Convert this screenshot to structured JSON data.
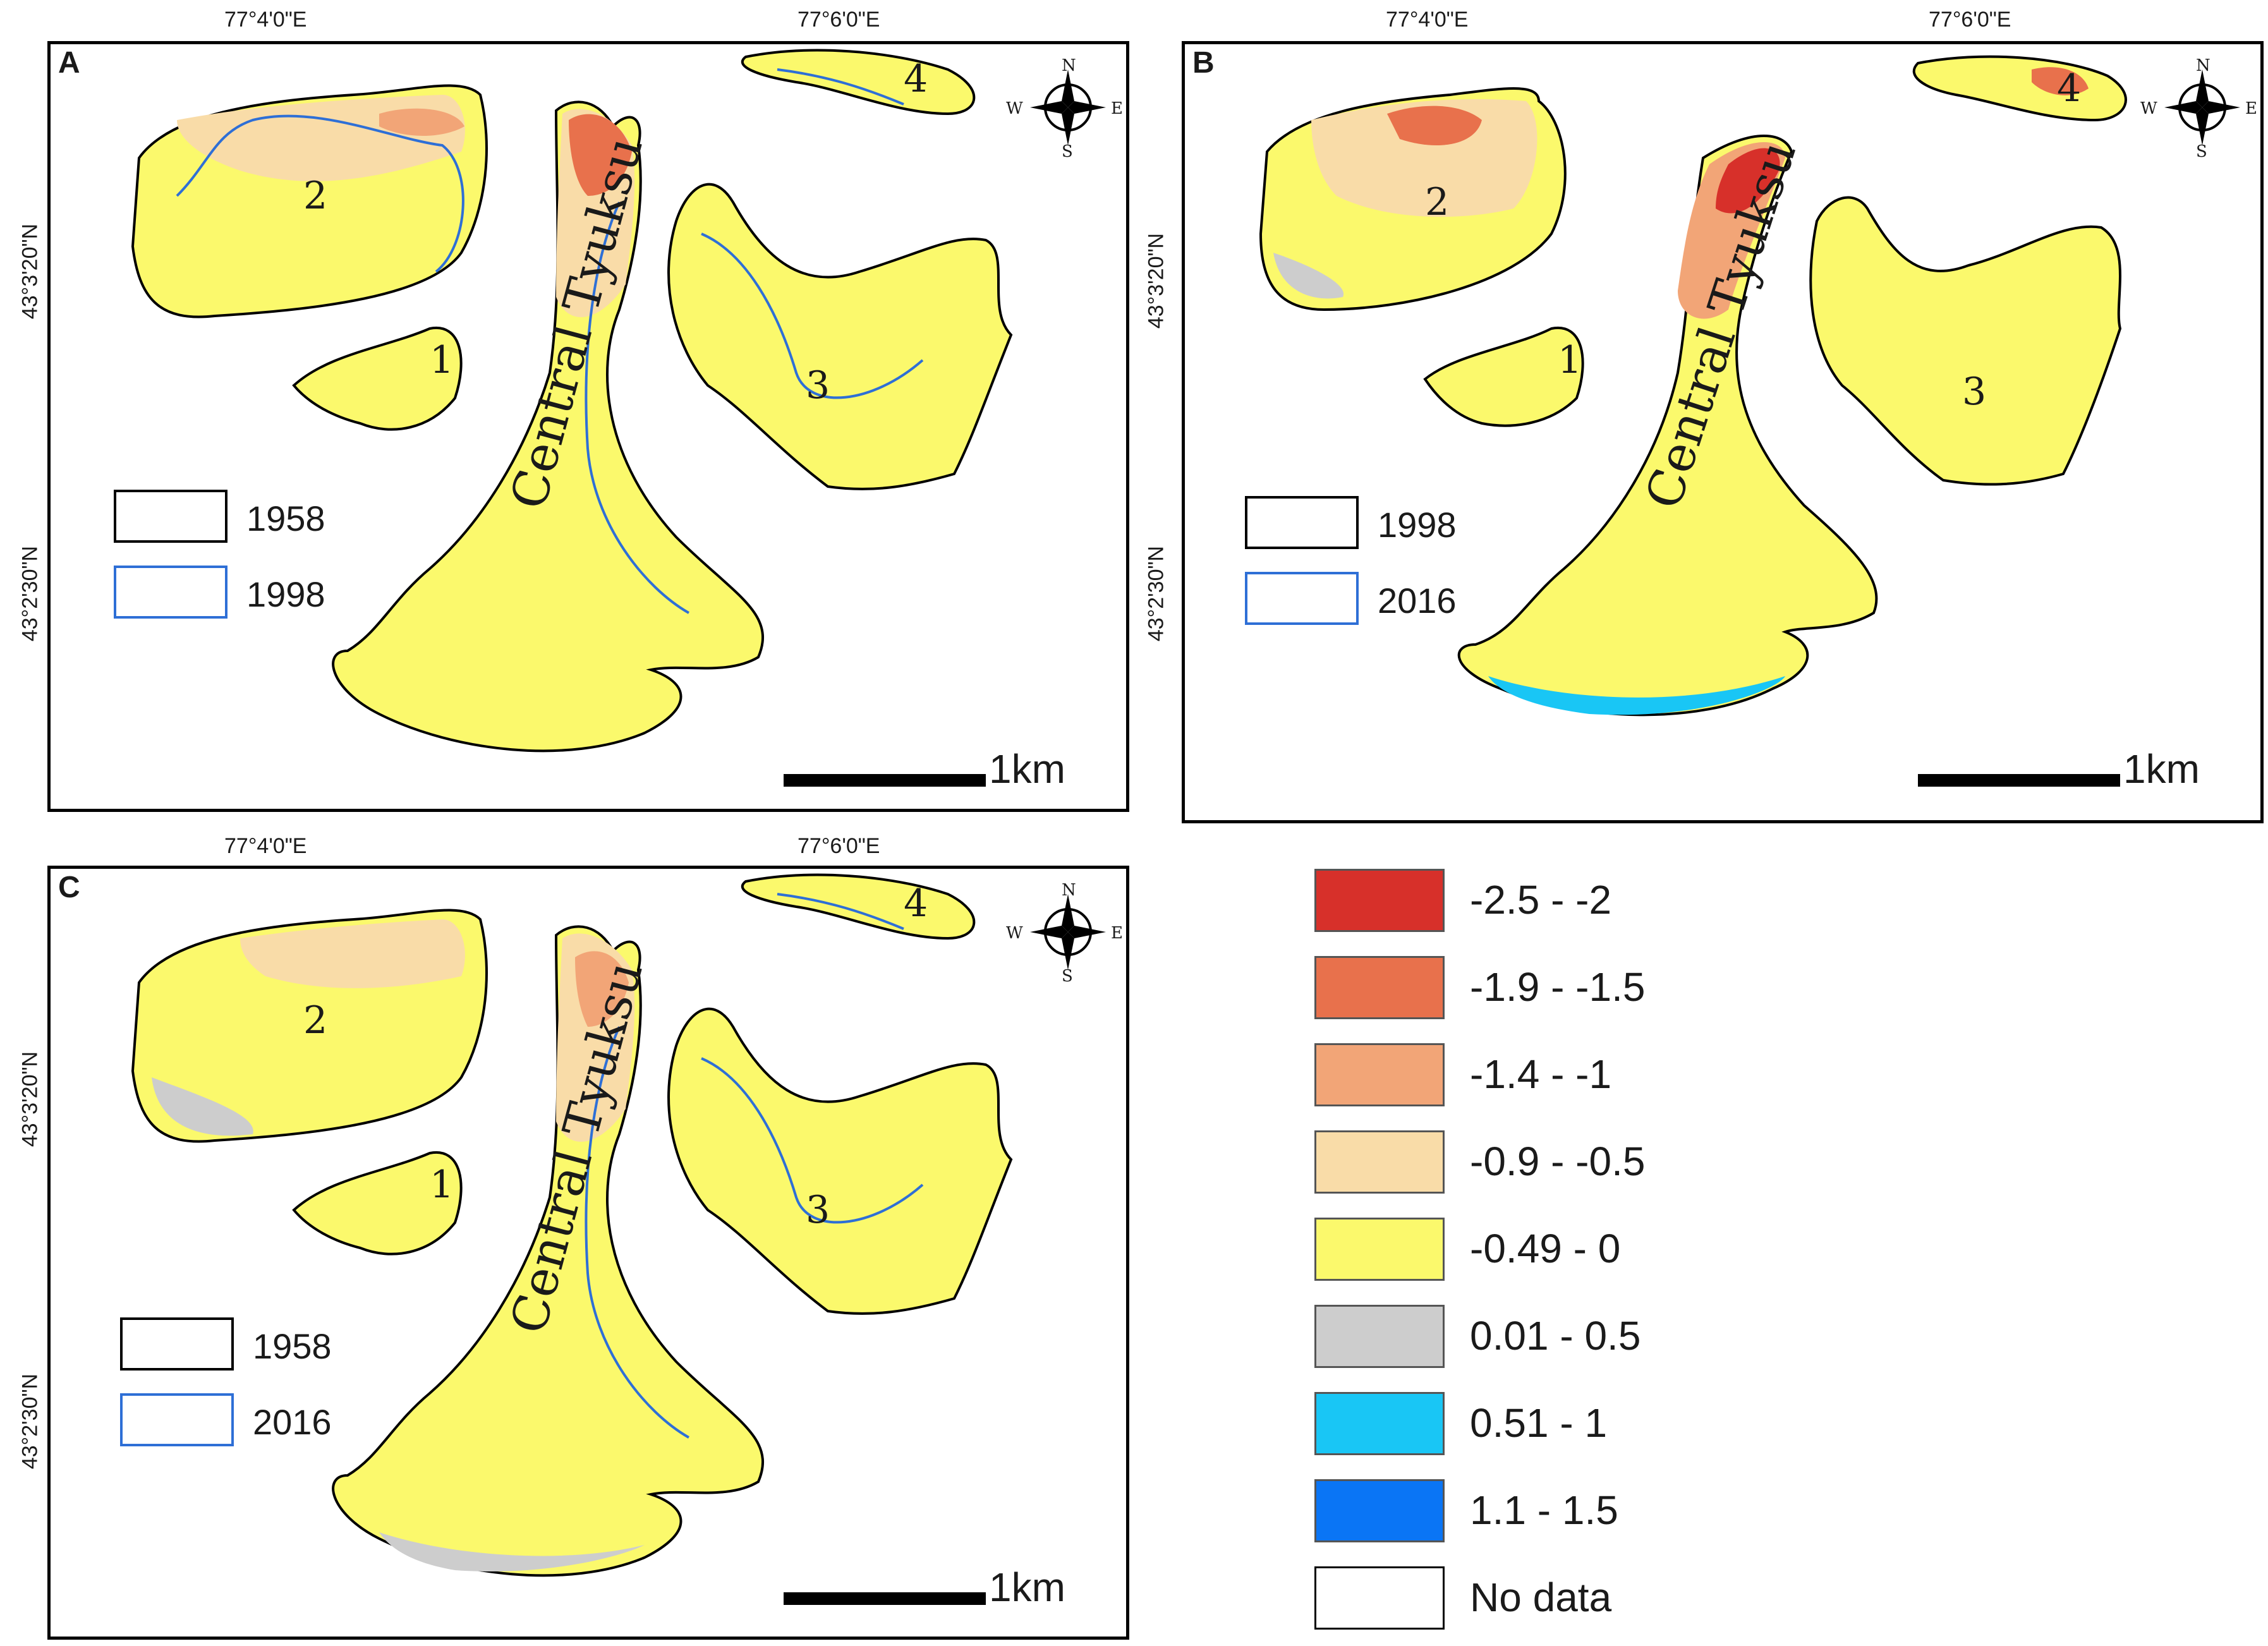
{
  "coords": {
    "lon_west": "77°4'0\"E",
    "lon_east": "77°6'0\"E",
    "lat_north": "43°3'20\"N",
    "lat_south": "43°2'30\"N"
  },
  "compass": {
    "n": "N",
    "s": "S",
    "e": "E",
    "w": "W"
  },
  "glacier_names": {
    "central": "Central Tyuksu",
    "g1": "1",
    "g2": "2",
    "g3": "3",
    "g4": "4"
  },
  "scale_label": "1km",
  "panels": [
    {
      "letter": "A",
      "outline_year": "1958",
      "inner_year": "1998"
    },
    {
      "letter": "B",
      "outline_year": "1998",
      "inner_year": "2016"
    },
    {
      "letter": "C",
      "outline_year": "1958",
      "inner_year": "2016"
    }
  ],
  "legend": [
    {
      "label": "-2.5 - -2",
      "color": "#d7302a"
    },
    {
      "label": "-1.9 - -1.5",
      "color": "#e8714c"
    },
    {
      "label": "-1.4 - -1",
      "color": "#f2a577"
    },
    {
      "label": "-0.9 - -0.5",
      "color": "#f9dca8"
    },
    {
      "label": "-0.49 - 0",
      "color": "#fbf96c"
    },
    {
      "label": "0.01 - 0.5",
      "color": "#cdcdcd"
    },
    {
      "label": "0.51 - 1",
      "color": "#19c6f5"
    },
    {
      "label": "1.1 - 1.5",
      "color": "#0a75f5"
    },
    {
      "label": "No data",
      "color": "#ffffff"
    }
  ]
}
